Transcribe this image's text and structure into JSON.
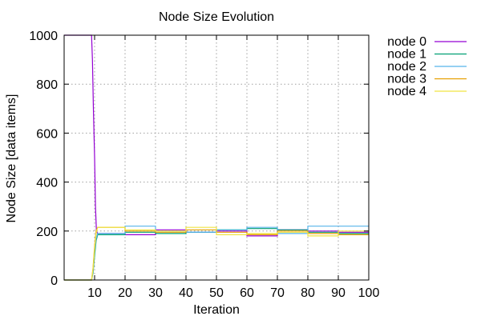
{
  "chart_data": {
    "type": "line",
    "title": "Node Size Evolution",
    "xlabel": "Iteration",
    "ylabel": "Node Size [data items]",
    "xlim": [
      0,
      100
    ],
    "ylim": [
      0,
      1000
    ],
    "x_ticks": [
      10,
      20,
      30,
      40,
      50,
      60,
      70,
      80,
      90,
      100
    ],
    "y_ticks": [
      0,
      200,
      400,
      600,
      800,
      1000
    ],
    "grid": true,
    "legend_position": "outside-top-right",
    "series": [
      {
        "name": "node 0",
        "color": "#9400d3",
        "x": [
          0,
          9,
          9.3,
          9.6,
          10,
          10.3,
          10.6,
          11,
          20,
          20,
          30,
          30,
          40,
          40,
          50,
          50,
          60,
          60,
          70,
          70,
          80,
          80,
          90,
          90,
          100
        ],
        "y": [
          1000,
          1000,
          900,
          700,
          500,
          300,
          200,
          190,
          190,
          185,
          185,
          205,
          205,
          195,
          195,
          200,
          200,
          180,
          180,
          205,
          205,
          200,
          200,
          195,
          195
        ]
      },
      {
        "name": "node 1",
        "color": "#009e73",
        "x": [
          0,
          9,
          9.5,
          10,
          10.5,
          11,
          20,
          20,
          30,
          30,
          40,
          40,
          50,
          50,
          60,
          60,
          70,
          70,
          80,
          80,
          90,
          90,
          100
        ],
        "y": [
          0,
          0,
          30,
          100,
          160,
          185,
          185,
          195,
          195,
          190,
          190,
          195,
          195,
          205,
          205,
          210,
          210,
          205,
          205,
          195,
          195,
          190,
          190
        ]
      },
      {
        "name": "node 2",
        "color": "#56b4e9",
        "x": [
          0,
          9,
          9.5,
          10,
          10.5,
          11,
          20,
          20,
          30,
          30,
          40,
          40,
          50,
          50,
          60,
          60,
          70,
          70,
          80,
          80,
          90,
          90,
          100
        ],
        "y": [
          0,
          0,
          40,
          120,
          170,
          190,
          190,
          220,
          220,
          200,
          200,
          195,
          195,
          205,
          205,
          215,
          215,
          190,
          190,
          220,
          220,
          220,
          220
        ]
      },
      {
        "name": "node 3",
        "color": "#e69f00",
        "x": [
          0,
          9,
          9.5,
          10,
          10.5,
          11,
          20,
          20,
          30,
          30,
          40,
          40,
          50,
          50,
          60,
          60,
          70,
          70,
          80,
          80,
          90,
          90,
          100
        ],
        "y": [
          0,
          0,
          50,
          140,
          200,
          215,
          215,
          200,
          200,
          195,
          195,
          205,
          205,
          195,
          195,
          185,
          185,
          200,
          200,
          190,
          190,
          185,
          185
        ]
      },
      {
        "name": "node 4",
        "color": "#f0e442",
        "x": [
          0,
          9,
          9.5,
          10,
          10.5,
          11,
          20,
          20,
          30,
          30,
          40,
          40,
          50,
          50,
          60,
          60,
          70,
          70,
          80,
          80,
          90,
          90,
          100
        ],
        "y": [
          0,
          0,
          45,
          130,
          190,
          215,
          215,
          205,
          205,
          200,
          200,
          215,
          215,
          185,
          185,
          190,
          190,
          195,
          195,
          180,
          180,
          200,
          200
        ]
      }
    ]
  }
}
